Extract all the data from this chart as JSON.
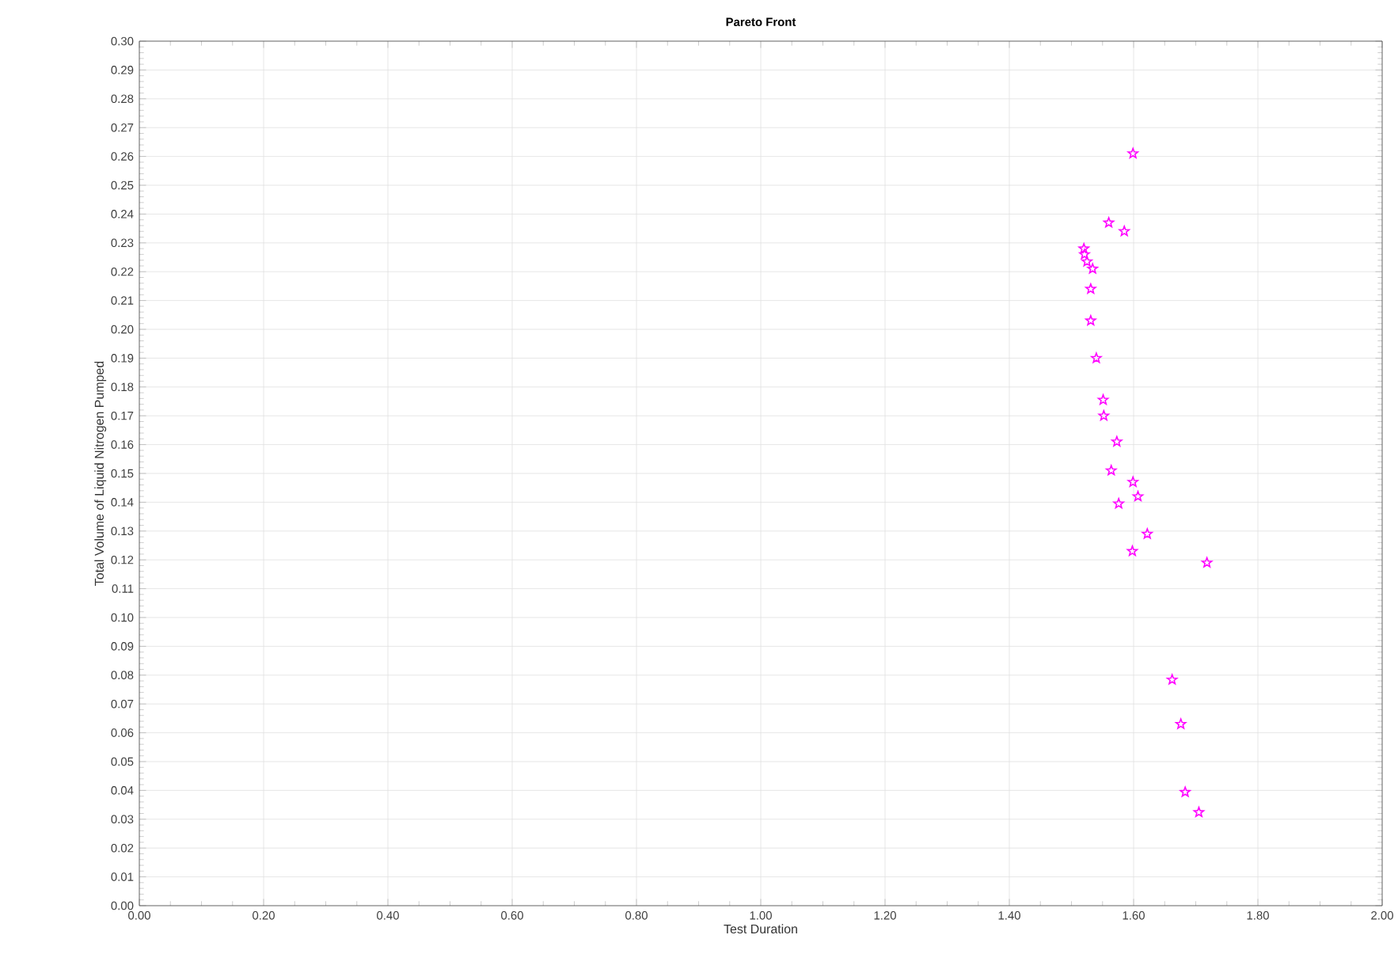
{
  "chart_data": {
    "type": "scatter",
    "title": "Pareto Front",
    "xlabel": "Test Duration",
    "ylabel": "Total Volume of Liquid Nitrogen Pumped",
    "series": [
      {
        "color": "#ff00ff",
        "x": [
          1.599,
          1.56,
          1.585,
          1.52,
          1.521,
          1.525,
          1.534,
          1.531,
          1.531,
          1.54,
          1.551,
          1.552,
          1.573,
          1.564,
          1.599,
          1.607,
          1.576,
          1.622,
          1.598,
          1.718,
          1.662,
          1.676,
          1.683,
          1.705
        ],
        "values": [
          0.261,
          0.237,
          0.234,
          0.228,
          0.226,
          0.2235,
          0.221,
          0.214,
          0.203,
          0.19,
          0.1755,
          0.17,
          0.161,
          0.151,
          0.147,
          0.142,
          0.1395,
          0.129,
          0.123,
          0.119,
          0.0784,
          0.063,
          0.0394,
          0.0324
        ]
      }
    ],
    "marker": "star",
    "grid": true,
    "xlim": [
      0,
      2
    ],
    "ylim": [
      0,
      0.3
    ],
    "xticks": [
      {
        "value": 0,
        "label": "0.00"
      },
      {
        "value": 0.2,
        "label": "0.20"
      },
      {
        "value": 0.4,
        "label": "0.40"
      },
      {
        "value": 0.6,
        "label": "0.60"
      },
      {
        "value": 0.8,
        "label": "0.80"
      },
      {
        "value": 1.0,
        "label": "1.00"
      },
      {
        "value": 1.2,
        "label": "1.20"
      },
      {
        "value": 1.4,
        "label": "1.40"
      },
      {
        "value": 1.6,
        "label": "1.60"
      },
      {
        "value": 1.8,
        "label": "1.80"
      },
      {
        "value": 2.0,
        "label": "2.00"
      }
    ],
    "yticks": [
      {
        "value": 0,
        "label": "0.00"
      },
      {
        "value": 0.01,
        "label": "0.01"
      },
      {
        "value": 0.02,
        "label": "0.02"
      },
      {
        "value": 0.03,
        "label": "0.03"
      },
      {
        "value": 0.04,
        "label": "0.04"
      },
      {
        "value": 0.05,
        "label": "0.05"
      },
      {
        "value": 0.06,
        "label": "0.06"
      },
      {
        "value": 0.07,
        "label": "0.07"
      },
      {
        "value": 0.08,
        "label": "0.08"
      },
      {
        "value": 0.09,
        "label": "0.09"
      },
      {
        "value": 0.1,
        "label": "0.10"
      },
      {
        "value": 0.11,
        "label": "0.11"
      },
      {
        "value": 0.12,
        "label": "0.12"
      },
      {
        "value": 0.13,
        "label": "0.13"
      },
      {
        "value": 0.14,
        "label": "0.14"
      },
      {
        "value": 0.15,
        "label": "0.15"
      },
      {
        "value": 0.16,
        "label": "0.16"
      },
      {
        "value": 0.17,
        "label": "0.17"
      },
      {
        "value": 0.18,
        "label": "0.18"
      },
      {
        "value": 0.19,
        "label": "0.19"
      },
      {
        "value": 0.2,
        "label": "0.20"
      },
      {
        "value": 0.21,
        "label": "0.21"
      },
      {
        "value": 0.22,
        "label": "0.22"
      },
      {
        "value": 0.23,
        "label": "0.23"
      },
      {
        "value": 0.24,
        "label": "0.24"
      },
      {
        "value": 0.25,
        "label": "0.25"
      },
      {
        "value": 0.26,
        "label": "0.26"
      },
      {
        "value": 0.27,
        "label": "0.27"
      },
      {
        "value": 0.28,
        "label": "0.28"
      },
      {
        "value": 0.29,
        "label": "0.29"
      },
      {
        "value": 0.3,
        "label": "0.30"
      }
    ]
  }
}
